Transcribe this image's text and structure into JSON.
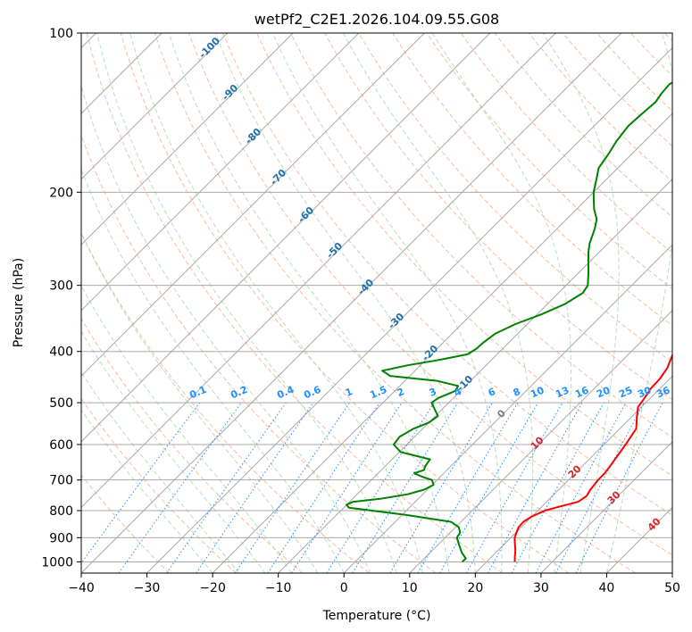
{
  "chart_data": {
    "type": "line",
    "title": "wetPf2_C2E1.2026.104.09.55.G08",
    "xlabel": "Temperature (°C)",
    "ylabel": "Pressure (hPa)",
    "xlim": [
      -40,
      50
    ],
    "plim": [
      1050,
      100
    ],
    "x_ticks": [
      -40,
      -30,
      -20,
      -10,
      0,
      10,
      20,
      30,
      40,
      50
    ],
    "x_tick_labels": [
      "−40",
      "−30",
      "−20",
      "−10",
      "0",
      "10",
      "20",
      "30",
      "40",
      "50"
    ],
    "p_ticks": [
      1000,
      900,
      800,
      700,
      600,
      500,
      400,
      300,
      200,
      100
    ],
    "p_tick_labels": [
      "1000",
      "900",
      "800",
      "700",
      "600",
      "500",
      "400",
      "300",
      "200",
      "100"
    ],
    "skew_note": "isotherms skewed 45 degrees",
    "series": [
      {
        "name": "Temperature",
        "color": "#ff0000",
        "points": [
          {
            "p": 1000,
            "t": 24.3
          },
          {
            "p": 980,
            "t": 23.6
          },
          {
            "p": 950,
            "t": 22.6
          },
          {
            "p": 920,
            "t": 21.4
          },
          {
            "p": 900,
            "t": 20.6
          },
          {
            "p": 880,
            "t": 20.1
          },
          {
            "p": 860,
            "t": 19.6
          },
          {
            "p": 840,
            "t": 19.5
          },
          {
            "p": 820,
            "t": 20.0
          },
          {
            "p": 800,
            "t": 21.1
          },
          {
            "p": 785,
            "t": 22.8
          },
          {
            "p": 770,
            "t": 24.8
          },
          {
            "p": 750,
            "t": 25.2
          },
          {
            "p": 730,
            "t": 24.8
          },
          {
            "p": 700,
            "t": 24.5
          },
          {
            "p": 680,
            "t": 24.5
          },
          {
            "p": 650,
            "t": 24.1
          },
          {
            "p": 600,
            "t": 23.3
          },
          {
            "p": 560,
            "t": 22.5
          },
          {
            "p": 530,
            "t": 20.7
          },
          {
            "p": 510,
            "t": 19.5
          },
          {
            "p": 490,
            "t": 19.1
          },
          {
            "p": 470,
            "t": 18.6
          },
          {
            "p": 450,
            "t": 18.5
          },
          {
            "p": 430,
            "t": 18.0
          },
          {
            "p": 410,
            "t": 17.0
          },
          {
            "p": 400,
            "t": 16.5
          },
          {
            "p": 370,
            "t": 14.3
          },
          {
            "p": 350,
            "t": 12.9
          },
          {
            "p": 330,
            "t": 11.0
          },
          {
            "p": 315,
            "t": 9.4
          },
          {
            "p": 300,
            "t": 8.2
          },
          {
            "p": 280,
            "t": 6.3
          },
          {
            "p": 260,
            "t": 4.0
          },
          {
            "p": 240,
            "t": 1.0
          },
          {
            "p": 220,
            "t": -2.1
          },
          {
            "p": 200,
            "t": -5.5
          },
          {
            "p": 185,
            "t": -8.5
          },
          {
            "p": 175,
            "t": -10.7
          },
          {
            "p": 165,
            "t": -11.7
          },
          {
            "p": 155,
            "t": -11.7
          },
          {
            "p": 150,
            "t": -11.0
          },
          {
            "p": 145,
            "t": -9.9
          },
          {
            "p": 140,
            "t": -8.8
          },
          {
            "p": 135,
            "t": -7.8
          },
          {
            "p": 130,
            "t": -7.3
          },
          {
            "p": 125,
            "t": -6.8
          },
          {
            "p": 120,
            "t": -6.3
          },
          {
            "p": 115,
            "t": -6.5
          },
          {
            "p": 110,
            "t": -6.9
          },
          {
            "p": 105,
            "t": -7.5
          },
          {
            "p": 100,
            "t": -8.2
          }
        ]
      },
      {
        "name": "Dewpoint",
        "color": "#008000",
        "points": [
          {
            "p": 1000,
            "t": 16.3
          },
          {
            "p": 985,
            "t": 16.3
          },
          {
            "p": 960,
            "t": 14.8
          },
          {
            "p": 930,
            "t": 13.3
          },
          {
            "p": 900,
            "t": 11.8
          },
          {
            "p": 880,
            "t": 11.5
          },
          {
            "p": 860,
            "t": 10.5
          },
          {
            "p": 840,
            "t": 8.5
          },
          {
            "p": 815,
            "t": 0.5
          },
          {
            "p": 790,
            "t": -9.2
          },
          {
            "p": 780,
            "t": -10.0
          },
          {
            "p": 770,
            "t": -9.5
          },
          {
            "p": 760,
            "t": -5.8
          },
          {
            "p": 745,
            "t": -2.3
          },
          {
            "p": 730,
            "t": -0.5
          },
          {
            "p": 715,
            "t": 0.2
          },
          {
            "p": 700,
            "t": -0.8
          },
          {
            "p": 690,
            "t": -2.8
          },
          {
            "p": 680,
            "t": -4.5
          },
          {
            "p": 670,
            "t": -3.5
          },
          {
            "p": 660,
            "t": -3.9
          },
          {
            "p": 640,
            "t": -4.2
          },
          {
            "p": 620,
            "t": -9.8
          },
          {
            "p": 600,
            "t": -12.0
          },
          {
            "p": 580,
            "t": -12.3
          },
          {
            "p": 560,
            "t": -11.4
          },
          {
            "p": 545,
            "t": -10.0
          },
          {
            "p": 530,
            "t": -9.6
          },
          {
            "p": 515,
            "t": -11.1
          },
          {
            "p": 500,
            "t": -12.6
          },
          {
            "p": 490,
            "t": -12.3
          },
          {
            "p": 475,
            "t": -10.8
          },
          {
            "p": 465,
            "t": -11.1
          },
          {
            "p": 455,
            "t": -15.0
          },
          {
            "p": 445,
            "t": -23.0
          },
          {
            "p": 435,
            "t": -25.0
          },
          {
            "p": 425,
            "t": -22.0
          },
          {
            "p": 415,
            "t": -18.0
          },
          {
            "p": 405,
            "t": -14.5
          },
          {
            "p": 395,
            "t": -14.0
          },
          {
            "p": 385,
            "t": -13.9
          },
          {
            "p": 370,
            "t": -13.4
          },
          {
            "p": 355,
            "t": -11.8
          },
          {
            "p": 340,
            "t": -9.3
          },
          {
            "p": 325,
            "t": -7.3
          },
          {
            "p": 310,
            "t": -6.3
          },
          {
            "p": 300,
            "t": -6.7
          },
          {
            "p": 285,
            "t": -8.4
          },
          {
            "p": 270,
            "t": -10.3
          },
          {
            "p": 260,
            "t": -11.6
          },
          {
            "p": 250,
            "t": -12.8
          },
          {
            "p": 235,
            "t": -14.2
          },
          {
            "p": 225,
            "t": -15.4
          },
          {
            "p": 215,
            "t": -17.4
          },
          {
            "p": 200,
            "t": -20.0
          },
          {
            "p": 190,
            "t": -21.4
          },
          {
            "p": 180,
            "t": -22.9
          },
          {
            "p": 170,
            "t": -23.5
          },
          {
            "p": 160,
            "t": -24.3
          },
          {
            "p": 150,
            "t": -24.8
          },
          {
            "p": 143,
            "t": -24.6
          },
          {
            "p": 135,
            "t": -24.3
          },
          {
            "p": 130,
            "t": -24.7
          },
          {
            "p": 125,
            "t": -24.9
          },
          {
            "p": 120,
            "t": -24.0
          },
          {
            "p": 115,
            "t": -22.8
          },
          {
            "p": 110,
            "t": -21.0
          },
          {
            "p": 105,
            "t": -19.3
          },
          {
            "p": 100,
            "t": -17.6
          }
        ]
      }
    ],
    "annotations": {
      "isotherm_labels": [
        {
          "text": "-100",
          "t": -100
        },
        {
          "text": "-90",
          "t": -90
        },
        {
          "text": "-80",
          "t": -80
        },
        {
          "text": "-70",
          "t": -70
        },
        {
          "text": "-60",
          "t": -60
        },
        {
          "text": "-50",
          "t": -50
        },
        {
          "text": "-40",
          "t": -40
        },
        {
          "text": "-30",
          "t": -30
        },
        {
          "text": "-20",
          "t": -20
        },
        {
          "text": "-10",
          "t": -10
        },
        {
          "text": "0",
          "t": 0
        },
        {
          "text": "10",
          "t": 10
        },
        {
          "text": "20",
          "t": 20
        },
        {
          "text": "30",
          "t": 30
        },
        {
          "text": "40",
          "t": 40
        }
      ],
      "mixing_ratio_labels": [
        "0.1",
        "0.2",
        "0.4",
        "0.6",
        "1",
        "1.5",
        "2",
        "3",
        "4",
        "6",
        "8",
        "10",
        "13",
        "16",
        "20",
        "25",
        "30",
        "36"
      ]
    },
    "colors": {
      "isotherm": "#a9a9a9",
      "isobar": "#a9a9a9",
      "dry_adiabat": "#f4a582",
      "moist_adiabat": "#a6d8a6",
      "mixing_ratio": "#1e90ff",
      "cold_label": "#1f6fa8",
      "zero_label": "#808080",
      "warm_label": "#d62728"
    }
  }
}
